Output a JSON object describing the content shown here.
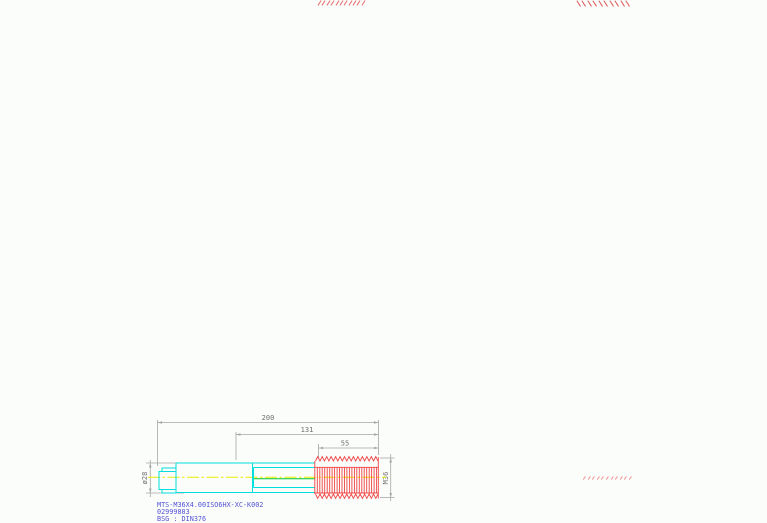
{
  "drawing": {
    "type": "machine-tap-side-view",
    "labels": {
      "overall_length": "200",
      "flute_section_length": "131",
      "thread_length": "55",
      "shank_diameter": "ø28",
      "thread_designation": "M36"
    },
    "title_block": {
      "tool_id": "MTS-M36X4.00ISO6HX-XC-K002",
      "order_number": "02999883",
      "standard": "BSG :  DIN376"
    },
    "colors": {
      "body_outline": "#00dede",
      "thread": "#f04343",
      "center_line": "#ecec00",
      "flute_line": "#00c832",
      "dimension_line": "#a6a6a6",
      "dimension_text": "#6e6e6e",
      "title_text": "#5353d6",
      "background": "#fbfdfb"
    }
  },
  "artifacts": {
    "top_left_hatch": {
      "mark": "slash",
      "count": 11,
      "color": "#e86e6e"
    },
    "top_right_hatch": {
      "mark": "backslash",
      "count": 10,
      "color": "#dd5454"
    },
    "bottom_right_hatch": {
      "mark": "small-slash",
      "count": 11,
      "color": "#ef8f8f"
    }
  }
}
